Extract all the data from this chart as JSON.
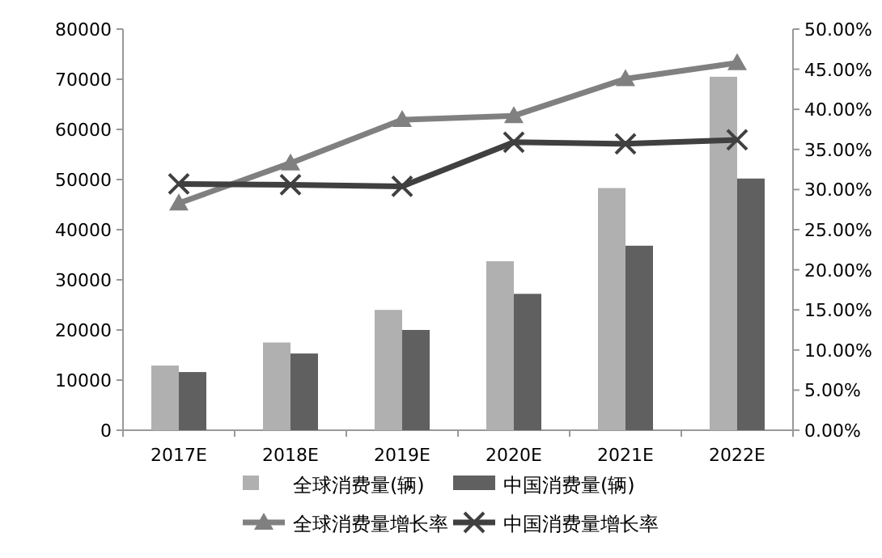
{
  "chart_data": {
    "type": "bar",
    "categories": [
      "2017E",
      "2018E",
      "2019E",
      "2020E",
      "2021E",
      "2022E"
    ],
    "series": [
      {
        "name": "全球消费量(辆)",
        "color": "#b0b0b0",
        "values": [
          12900,
          17500,
          24000,
          33700,
          48300,
          70500
        ]
      },
      {
        "name": "中国消费量(辆)",
        "color": "#606060",
        "values": [
          11600,
          15300,
          20000,
          27200,
          36800,
          50200
        ]
      },
      {
        "name": "全球消费量增长率",
        "type": "line",
        "axis": "y2",
        "marker": "triangle",
        "color": "#808080",
        "values": [
          28.3,
          33.3,
          38.7,
          39.2,
          43.8,
          45.8
        ]
      },
      {
        "name": "中国消费量增长率",
        "type": "line",
        "axis": "y2",
        "marker": "cross",
        "color": "#404040",
        "values": [
          30.7,
          30.6,
          30.4,
          35.9,
          35.7,
          36.2
        ]
      }
    ],
    "ylim": [
      0,
      80000
    ],
    "yticks": [
      0,
      10000,
      20000,
      30000,
      40000,
      50000,
      60000,
      70000,
      80000
    ],
    "y2lim": [
      0,
      50
    ],
    "y2ticks": [
      {
        "value": 0,
        "label": "0.00%"
      },
      {
        "value": 5,
        "label": "5.00%"
      },
      {
        "value": 10,
        "label": "10.00%"
      },
      {
        "value": 15,
        "label": "15.00%"
      },
      {
        "value": 20,
        "label": "20.00%"
      },
      {
        "value": 25,
        "label": "25.00%"
      },
      {
        "value": 30,
        "label": "30.00%"
      },
      {
        "value": 35,
        "label": "35.00%"
      },
      {
        "value": 40,
        "label": "40.00%"
      },
      {
        "value": 45,
        "label": "45.00%"
      },
      {
        "value": 50,
        "label": "50.00%"
      }
    ],
    "legend": "bottom",
    "grid": false
  }
}
